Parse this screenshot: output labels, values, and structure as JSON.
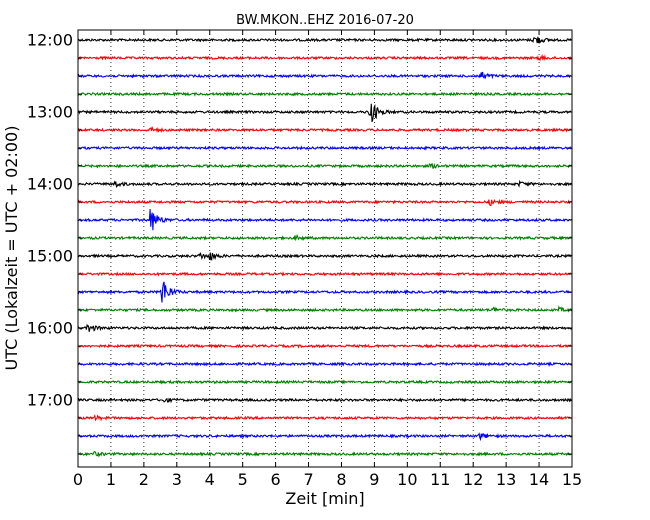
{
  "chart_data": {
    "type": "line",
    "title": "BW.MKON..EHZ 2016-07-20",
    "xlabel": "Zeit  [min]",
    "ylabel": "UTC (Lokalzeit = UTC + 02:00)",
    "xlim": [
      0,
      15
    ],
    "x_ticks": [
      0,
      1,
      2,
      3,
      4,
      5,
      6,
      7,
      8,
      9,
      10,
      11,
      12,
      13,
      14,
      15
    ],
    "x_tick_labels": [
      "0",
      "1",
      "2",
      "3",
      "4",
      "5",
      "6",
      "7",
      "8",
      "9",
      "10",
      "11",
      "12",
      "13",
      "14",
      "15"
    ],
    "y_tick_labels": [
      "12:00",
      "13:00",
      "14:00",
      "15:00",
      "16:00",
      "17:00"
    ],
    "grid": "vertical dotted",
    "trace_colors": [
      "#000000",
      "#ff0000",
      "#0000ff",
      "#008000"
    ],
    "series": [
      {
        "start": "12:00",
        "color": "#000000",
        "events": [
          {
            "x": 13.85,
            "amp": 6
          }
        ]
      },
      {
        "start": "12:15",
        "color": "#ff0000",
        "events": [
          {
            "x": 14.0,
            "amp": 2
          }
        ]
      },
      {
        "start": "12:30",
        "color": "#0000ff",
        "events": [
          {
            "x": 12.2,
            "amp": 5
          }
        ]
      },
      {
        "start": "12:45",
        "color": "#008000",
        "events": []
      },
      {
        "start": "13:00",
        "color": "#000000",
        "events": [
          {
            "x": 8.85,
            "amp": 16
          }
        ]
      },
      {
        "start": "13:15",
        "color": "#ff0000",
        "events": [
          {
            "x": 2.2,
            "amp": 2
          }
        ]
      },
      {
        "start": "13:30",
        "color": "#0000ff",
        "events": []
      },
      {
        "start": "13:45",
        "color": "#008000",
        "events": [
          {
            "x": 10.7,
            "amp": 2
          }
        ]
      },
      {
        "start": "14:00",
        "color": "#000000",
        "events": [
          {
            "x": 1.1,
            "amp": 3
          },
          {
            "x": 13.4,
            "amp": 2
          }
        ]
      },
      {
        "start": "14:15",
        "color": "#ff0000",
        "events": [
          {
            "x": 12.5,
            "amp": 3
          }
        ]
      },
      {
        "start": "14:30",
        "color": "#0000ff",
        "events": [
          {
            "x": 2.2,
            "amp": 15
          }
        ]
      },
      {
        "start": "14:45",
        "color": "#008000",
        "events": [
          {
            "x": 6.6,
            "amp": 2
          }
        ]
      },
      {
        "start": "15:00",
        "color": "#000000",
        "events": [
          {
            "x": 3.7,
            "amp": 3
          },
          {
            "x": 4.0,
            "amp": 4
          }
        ]
      },
      {
        "start": "15:15",
        "color": "#ff0000",
        "events": []
      },
      {
        "start": "15:30",
        "color": "#0000ff",
        "events": [
          {
            "x": 2.55,
            "amp": 16
          }
        ]
      },
      {
        "start": "15:45",
        "color": "#008000",
        "events": [
          {
            "x": 12.6,
            "amp": 2
          },
          {
            "x": 14.6,
            "amp": 2
          }
        ]
      },
      {
        "start": "16:00",
        "color": "#000000",
        "events": [
          {
            "x": 0.3,
            "amp": 5
          }
        ]
      },
      {
        "start": "16:15",
        "color": "#ff0000",
        "events": []
      },
      {
        "start": "16:30",
        "color": "#0000ff",
        "events": []
      },
      {
        "start": "16:45",
        "color": "#008000",
        "events": []
      },
      {
        "start": "17:00",
        "color": "#000000",
        "events": [
          {
            "x": 2.6,
            "amp": 2
          }
        ]
      },
      {
        "start": "17:15",
        "color": "#ff0000",
        "events": [
          {
            "x": 0.5,
            "amp": 2
          }
        ]
      },
      {
        "start": "17:30",
        "color": "#0000ff",
        "events": [
          {
            "x": 12.2,
            "amp": 3
          }
        ]
      },
      {
        "start": "17:45",
        "color": "#008000",
        "events": [
          {
            "x": 0.5,
            "amp": 2
          }
        ]
      }
    ]
  }
}
